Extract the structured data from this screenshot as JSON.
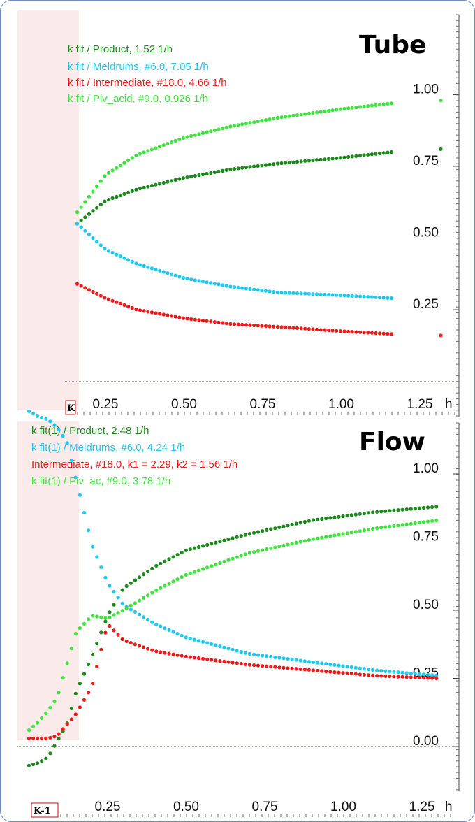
{
  "chart_data": [
    {
      "type": "scatter",
      "title": "Tube",
      "marker_label": "K",
      "x_unit": "h",
      "x_ticks": [
        "0.25",
        "0.50",
        "0.75",
        "1.00",
        "1.25"
      ],
      "y_ticks": [
        "0.25",
        "0.50",
        "0.75",
        "1.00"
      ],
      "xlim": [
        0.06,
        1.3
      ],
      "ylim": [
        0.0,
        1.2
      ],
      "baseline_y": 0.0,
      "grid": false,
      "legend_position": "top-left",
      "series": [
        {
          "name": "k fit / Product,  1.52 1/h",
          "color": "#1a8a1a",
          "x": [
            0.16,
            0.25,
            0.35,
            0.5,
            0.65,
            0.8,
            1.0,
            1.16
          ],
          "y": [
            0.55,
            0.63,
            0.67,
            0.71,
            0.74,
            0.76,
            0.78,
            0.8
          ]
        },
        {
          "name": "k fit / Meldrums, #6.0,  7.05 1/h",
          "color": "#1ec8f2",
          "x": [
            0.16,
            0.25,
            0.35,
            0.5,
            0.65,
            0.8,
            1.0,
            1.16
          ],
          "y": [
            0.55,
            0.46,
            0.41,
            0.36,
            0.33,
            0.31,
            0.3,
            0.29
          ]
        },
        {
          "name": "k fit / Intermediate, #18.0,  4.66 1/h",
          "color": "#ee1a1a",
          "x": [
            0.16,
            0.25,
            0.35,
            0.5,
            0.65,
            0.8,
            1.0,
            1.16
          ],
          "y": [
            0.34,
            0.29,
            0.25,
            0.22,
            0.2,
            0.19,
            0.175,
            0.165
          ]
        },
        {
          "name": "k fit / Piv_acid, #9.0,  0.926 1/h",
          "color": "#3ee33e",
          "x": [
            0.16,
            0.25,
            0.35,
            0.5,
            0.65,
            0.8,
            1.0,
            1.16
          ],
          "y": [
            0.59,
            0.72,
            0.79,
            0.85,
            0.89,
            0.92,
            0.95,
            0.97
          ]
        }
      ],
      "right_markers": [
        {
          "color": "#3ee33e",
          "y": 0.98
        },
        {
          "color": "#1a8a1a",
          "y": 0.81
        },
        {
          "color": "#ee1a1a",
          "y": 0.16
        }
      ]
    },
    {
      "type": "scatter",
      "title": "Flow",
      "marker_label": "K-1",
      "x_unit": "h",
      "x_ticks": [
        "0.25",
        "0.50",
        "0.75",
        "1.00",
        "1.25"
      ],
      "y_ticks": [
        "0.00",
        "0.25",
        "0.50",
        "0.75",
        "1.00"
      ],
      "xlim": [
        0.0,
        1.3
      ],
      "ylim": [
        -0.12,
        1.3
      ],
      "baseline_y": 0.0,
      "grid": false,
      "legend_position": "top-left",
      "series": [
        {
          "name": "k fit(1) / Product,  2.48 1/h",
          "color": "#1a8a1a",
          "x": [
            0.0,
            0.03,
            0.06,
            0.09,
            0.12,
            0.15,
            0.2,
            0.25,
            0.3,
            0.4,
            0.5,
            0.7,
            0.9,
            1.1,
            1.3
          ],
          "y": [
            -0.07,
            -0.06,
            -0.04,
            0.02,
            0.08,
            0.2,
            0.33,
            0.48,
            0.58,
            0.66,
            0.72,
            0.78,
            0.83,
            0.86,
            0.88
          ]
        },
        {
          "name": "k fit(1) / Meldrums, #6.0,  4.24 1/h",
          "color": "#1ec8f2",
          "x": [
            0.0,
            0.03,
            0.06,
            0.09,
            0.12,
            0.15,
            0.2,
            0.25,
            0.3,
            0.4,
            0.5,
            0.7,
            0.9,
            1.1,
            1.3
          ],
          "y": [
            1.23,
            1.21,
            1.2,
            1.17,
            1.12,
            0.98,
            0.74,
            0.6,
            0.52,
            0.45,
            0.4,
            0.34,
            0.31,
            0.28,
            0.26
          ]
        },
        {
          "name": "Intermediate, #18.0,  k1 = 2.29, k2 = 1.56 1/h",
          "color": "#ee1a1a",
          "x": [
            0.0,
            0.03,
            0.06,
            0.09,
            0.12,
            0.15,
            0.2,
            0.25,
            0.3,
            0.4,
            0.5,
            0.7,
            0.9,
            1.1,
            1.3
          ],
          "y": [
            0.03,
            0.03,
            0.03,
            0.04,
            0.08,
            0.12,
            0.22,
            0.45,
            0.39,
            0.35,
            0.33,
            0.3,
            0.28,
            0.26,
            0.25
          ]
        },
        {
          "name": "k fit(1) / Piv_ac, #9.0,  3.78 1/h",
          "color": "#3ee33e",
          "x": [
            0.0,
            0.03,
            0.06,
            0.09,
            0.12,
            0.15,
            0.2,
            0.25,
            0.3,
            0.4,
            0.5,
            0.7,
            0.9,
            1.1,
            1.3
          ],
          "y": [
            0.06,
            0.09,
            0.13,
            0.18,
            0.3,
            0.42,
            0.48,
            0.47,
            0.5,
            0.57,
            0.63,
            0.71,
            0.76,
            0.8,
            0.83
          ]
        }
      ]
    }
  ]
}
